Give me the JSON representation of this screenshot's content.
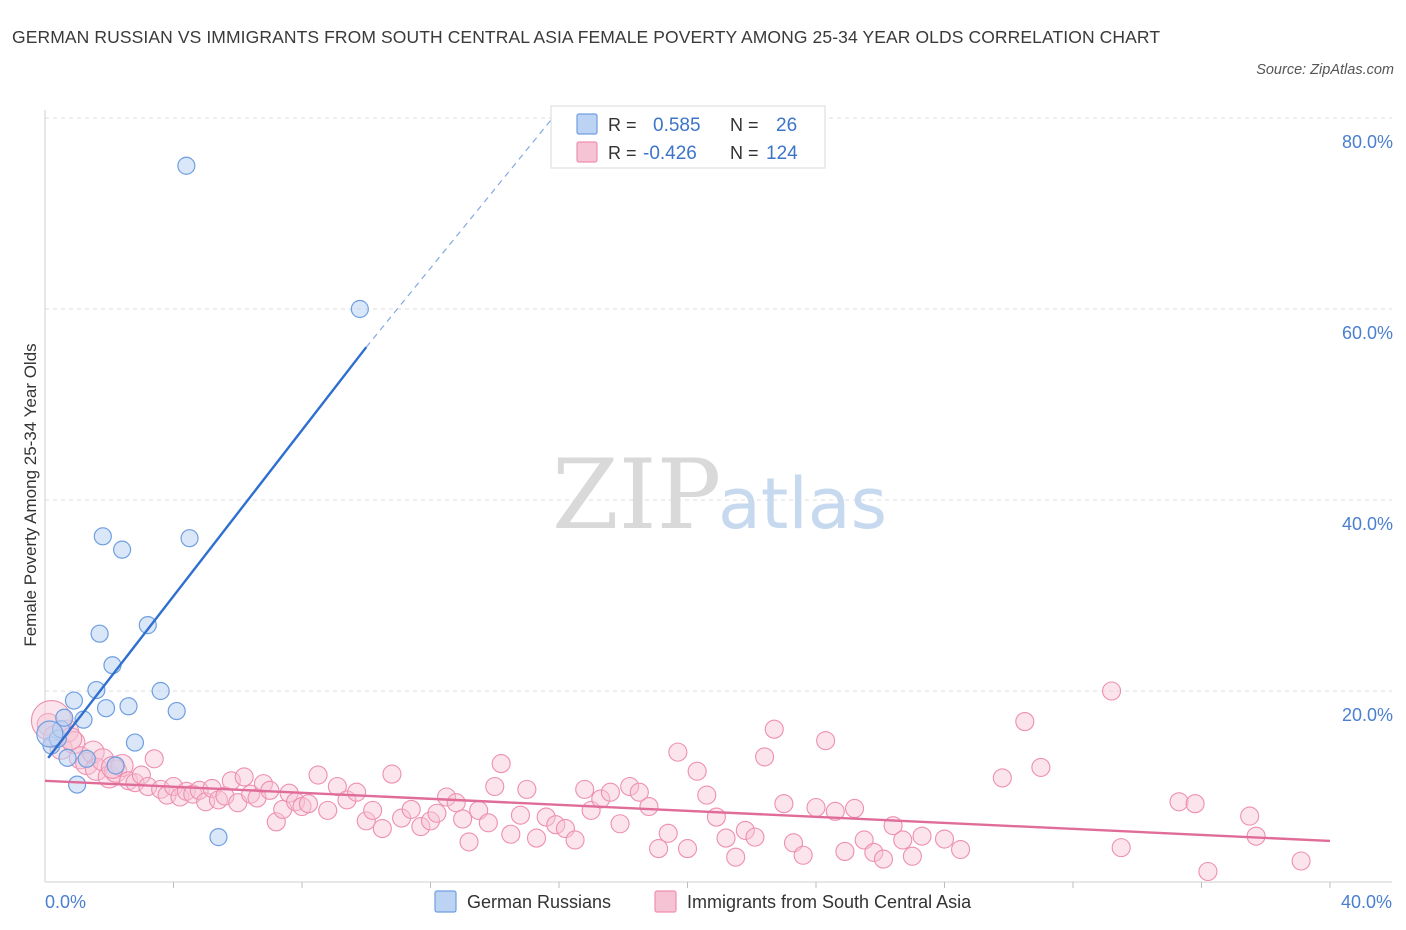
{
  "title": "GERMAN RUSSIAN VS IMMIGRANTS FROM SOUTH CENTRAL ASIA FEMALE POVERTY AMONG 25-34 YEAR OLDS CORRELATION CHART",
  "source": "Source: ZipAtlas.com",
  "watermark": {
    "zip": "ZIP",
    "atlas": "atlas"
  },
  "colors": {
    "blue": "#6f9fe0",
    "blue_fill": "#bcd3f3",
    "blue_line": "#2f6fcf",
    "pink": "#ee8fb0",
    "pink_fill": "#f6c3d4",
    "pink_line": "#e06c98",
    "tick": "#4a7fd0",
    "grid": "#dcdcdc"
  },
  "legend": {
    "rows": [
      {
        "r_label": "R =",
        "r_value": "0.585",
        "n_label": "N =",
        "n_value": "26"
      },
      {
        "r_label": "R =",
        "r_value": "-0.426",
        "n_label": "N =",
        "n_value": "124"
      }
    ]
  },
  "bottom_legend": [
    "German Russians",
    "Immigrants from South Central Asia"
  ],
  "chart_data": {
    "type": "scatter",
    "title": "GERMAN RUSSIAN VS IMMIGRANTS FROM SOUTH CENTRAL ASIA FEMALE POVERTY AMONG 25-34 YEAR OLDS CORRELATION CHART",
    "xlabel": "",
    "ylabel": "Female Poverty Among 25-34 Year Olds",
    "xlim": [
      0,
      40
    ],
    "ylim": [
      0,
      80
    ],
    "x_tick_labels": [
      "0.0%",
      "40.0%"
    ],
    "y_ticks": [
      20,
      40,
      60,
      80
    ],
    "y_tick_labels": [
      "20.0%",
      "40.0%",
      "60.0%",
      "80.0%"
    ],
    "grid": true,
    "legend_position": "top-center",
    "series": [
      {
        "name": "German Russians",
        "color": "#6f9fe0",
        "trend": {
          "x0": 0.1,
          "y0": 13.0,
          "x1": 10.0,
          "y1": 56.0,
          "dashed_to": {
            "x": 15.8,
            "y": 80.0
          }
        },
        "points": [
          [
            0.2,
            14.3
          ],
          [
            0.4,
            15.0
          ],
          [
            0.5,
            16.0
          ],
          [
            0.6,
            17.2
          ],
          [
            0.7,
            13.0
          ],
          [
            0.9,
            19.0
          ],
          [
            1.0,
            10.2
          ],
          [
            1.2,
            17.0
          ],
          [
            1.3,
            12.9
          ],
          [
            1.6,
            20.1
          ],
          [
            1.7,
            26.0
          ],
          [
            1.8,
            36.2
          ],
          [
            1.9,
            18.2
          ],
          [
            2.1,
            22.7
          ],
          [
            2.2,
            12.2
          ],
          [
            2.4,
            34.8
          ],
          [
            2.6,
            18.4
          ],
          [
            2.8,
            14.6
          ],
          [
            3.2,
            26.9
          ],
          [
            3.6,
            20.0
          ],
          [
            4.1,
            17.9
          ],
          [
            4.4,
            75.0
          ],
          [
            4.5,
            36.0
          ],
          [
            5.4,
            4.7
          ],
          [
            9.8,
            60.0
          ],
          [
            0.15,
            15.5
          ]
        ]
      },
      {
        "name": "Immigrants from South Central Asia",
        "color": "#ee8fb0",
        "trend": {
          "x0": 0.0,
          "y0": 10.6,
          "x1": 40.0,
          "y1": 4.3
        },
        "points": [
          [
            0.1,
            16.5
          ],
          [
            0.3,
            15.2
          ],
          [
            0.5,
            14.0
          ],
          [
            0.7,
            15.8
          ],
          [
            0.9,
            14.6
          ],
          [
            1.1,
            13.0
          ],
          [
            1.3,
            12.4
          ],
          [
            1.5,
            13.6
          ],
          [
            1.6,
            11.8
          ],
          [
            1.8,
            12.8
          ],
          [
            2.0,
            11.0
          ],
          [
            2.2,
            11.6
          ],
          [
            2.4,
            12.2
          ],
          [
            2.6,
            10.6
          ],
          [
            2.8,
            10.4
          ],
          [
            3.0,
            11.2
          ],
          [
            3.2,
            10.0
          ],
          [
            3.4,
            12.9
          ],
          [
            3.6,
            9.7
          ],
          [
            3.8,
            9.1
          ],
          [
            4.0,
            10.0
          ],
          [
            4.2,
            8.9
          ],
          [
            4.4,
            9.5
          ],
          [
            4.6,
            9.2
          ],
          [
            4.8,
            9.6
          ],
          [
            5.0,
            8.4
          ],
          [
            5.2,
            9.8
          ],
          [
            5.4,
            8.6
          ],
          [
            5.6,
            9.0
          ],
          [
            5.8,
            10.6
          ],
          [
            6.0,
            8.3
          ],
          [
            6.2,
            11.0
          ],
          [
            6.4,
            9.2
          ],
          [
            6.6,
            8.8
          ],
          [
            6.8,
            10.3
          ],
          [
            7.0,
            9.6
          ],
          [
            7.2,
            6.3
          ],
          [
            7.4,
            7.6
          ],
          [
            7.6,
            9.3
          ],
          [
            7.8,
            8.4
          ],
          [
            8.0,
            7.9
          ],
          [
            8.2,
            8.2
          ],
          [
            8.5,
            11.2
          ],
          [
            8.8,
            7.5
          ],
          [
            9.1,
            10.0
          ],
          [
            9.4,
            8.6
          ],
          [
            9.7,
            9.4
          ],
          [
            10.0,
            6.4
          ],
          [
            10.2,
            7.5
          ],
          [
            10.5,
            5.6
          ],
          [
            10.8,
            11.3
          ],
          [
            11.1,
            6.7
          ],
          [
            11.4,
            7.6
          ],
          [
            11.7,
            5.8
          ],
          [
            12.0,
            6.4
          ],
          [
            12.2,
            7.2
          ],
          [
            12.5,
            8.9
          ],
          [
            12.8,
            8.3
          ],
          [
            13.0,
            6.6
          ],
          [
            13.2,
            4.2
          ],
          [
            13.5,
            7.5
          ],
          [
            13.8,
            6.2
          ],
          [
            14.0,
            10.0
          ],
          [
            14.2,
            12.4
          ],
          [
            14.5,
            5.0
          ],
          [
            14.8,
            7.0
          ],
          [
            15.0,
            9.7
          ],
          [
            15.3,
            4.6
          ],
          [
            15.6,
            6.8
          ],
          [
            15.9,
            6.0
          ],
          [
            16.2,
            5.6
          ],
          [
            16.5,
            4.4
          ],
          [
            16.8,
            9.7
          ],
          [
            17.0,
            7.5
          ],
          [
            17.3,
            8.7
          ],
          [
            17.6,
            9.4
          ],
          [
            17.9,
            6.1
          ],
          [
            18.2,
            10.0
          ],
          [
            18.5,
            9.4
          ],
          [
            18.8,
            7.9
          ],
          [
            19.1,
            3.5
          ],
          [
            19.4,
            5.1
          ],
          [
            19.7,
            13.6
          ],
          [
            20.0,
            3.5
          ],
          [
            20.3,
            11.6
          ],
          [
            20.6,
            9.1
          ],
          [
            20.9,
            6.8
          ],
          [
            21.2,
            4.6
          ],
          [
            21.5,
            2.6
          ],
          [
            21.8,
            5.4
          ],
          [
            22.1,
            4.7
          ],
          [
            22.4,
            13.1
          ],
          [
            22.7,
            16.0
          ],
          [
            23.0,
            8.2
          ],
          [
            23.3,
            4.1
          ],
          [
            23.6,
            2.8
          ],
          [
            24.0,
            7.8
          ],
          [
            24.3,
            14.8
          ],
          [
            24.6,
            7.4
          ],
          [
            24.9,
            3.2
          ],
          [
            25.2,
            7.7
          ],
          [
            25.5,
            4.4
          ],
          [
            25.8,
            3.1
          ],
          [
            26.1,
            2.4
          ],
          [
            26.4,
            5.9
          ],
          [
            26.7,
            4.4
          ],
          [
            27.0,
            2.7
          ],
          [
            27.3,
            4.8
          ],
          [
            28.0,
            4.5
          ],
          [
            28.5,
            3.4
          ],
          [
            29.8,
            10.9
          ],
          [
            30.5,
            16.8
          ],
          [
            31.0,
            12.0
          ],
          [
            33.2,
            20.0
          ],
          [
            33.5,
            3.6
          ],
          [
            35.3,
            8.4
          ],
          [
            35.8,
            8.2
          ],
          [
            36.2,
            1.1
          ],
          [
            37.5,
            6.9
          ],
          [
            37.7,
            4.8
          ],
          [
            39.1,
            2.2
          ],
          [
            0.2,
            16.9
          ],
          [
            0.8,
            15.0
          ],
          [
            2.1,
            12.0
          ]
        ]
      }
    ]
  }
}
